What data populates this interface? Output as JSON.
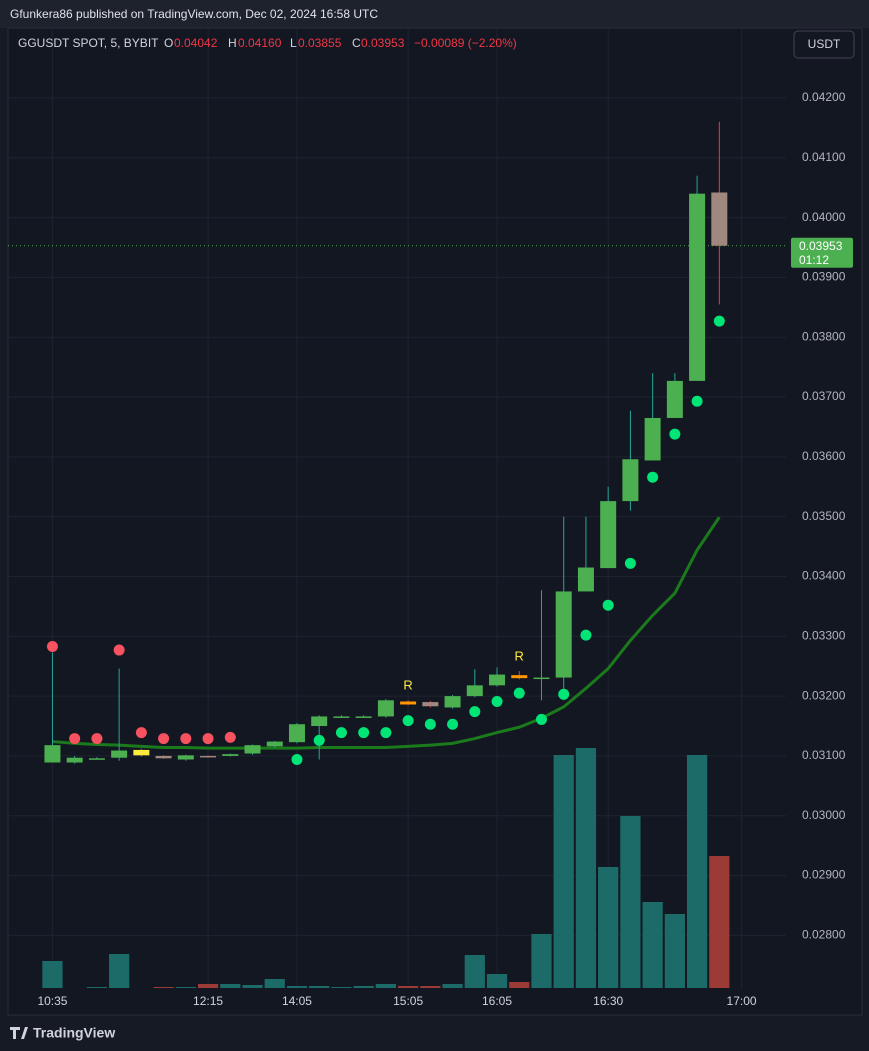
{
  "header": {
    "title": "Gfunkera86 published on TradingView.com, Dec 02, 2024 16:58 UTC",
    "footer": "TradingView",
    "currency_button": "USDT"
  },
  "legend": {
    "symbol": "GGUSDT SPOT, 5, BYBIT",
    "o_label": "O",
    "o_value": "0.04042",
    "h_label": "H",
    "h_value": "0.04160",
    "l_label": "L",
    "l_value": "0.03855",
    "c_label": "C",
    "c_value": "0.03953",
    "change": "−0.00089 (−2.20%)"
  },
  "chart_data": {
    "type": "candlestick",
    "open": [
      0.03089,
      0.03089,
      0.03096,
      0.03097,
      0.0311,
      0.031,
      0.03094,
      0.031,
      0.031,
      0.03104,
      0.03116,
      0.03123,
      0.0315,
      0.03166,
      0.03166,
      0.03166,
      0.03191,
      0.0319,
      0.03181,
      0.032,
      0.03218,
      0.03235,
      0.03231,
      0.03231,
      0.03375,
      0.03414,
      0.03526,
      0.03594,
      0.03665,
      0.03727,
      0.04042
    ],
    "high": [
      0.03273,
      0.031,
      0.03098,
      0.03246,
      0.03112,
      0.03101,
      0.03102,
      0.03101,
      0.03104,
      0.03119,
      0.03125,
      0.03155,
      0.03168,
      0.03168,
      0.03168,
      0.03195,
      0.03193,
      0.03192,
      0.03202,
      0.03245,
      0.03248,
      0.03242,
      0.03377,
      0.035,
      0.035,
      0.0355,
      0.03677,
      0.0374,
      0.0374,
      0.0407,
      0.0416
    ],
    "low": [
      0.03089,
      0.03087,
      0.03094,
      0.03092,
      0.03099,
      0.03095,
      0.03092,
      0.03097,
      0.03099,
      0.03102,
      0.03114,
      0.03121,
      0.03094,
      0.03164,
      0.03164,
      0.03164,
      0.03185,
      0.03181,
      0.03179,
      0.03198,
      0.03216,
      0.03228,
      0.03193,
      0.03193,
      0.03375,
      0.03414,
      0.0351,
      0.03594,
      0.03665,
      0.03727,
      0.03855
    ],
    "close": [
      0.03118,
      0.03097,
      0.03096,
      0.03109,
      0.03101,
      0.03096,
      0.03101,
      0.03098,
      0.03103,
      0.03118,
      0.03124,
      0.03153,
      0.03166,
      0.03166,
      0.03166,
      0.03193,
      0.03186,
      0.03183,
      0.032,
      0.03218,
      0.03236,
      0.0323,
      0.03231,
      0.03375,
      0.03415,
      0.03526,
      0.03596,
      0.03665,
      0.03727,
      0.0404,
      0.03953
    ],
    "volume": [
      27,
      0,
      1,
      34,
      0,
      1,
      1,
      4,
      4,
      3,
      9,
      2,
      2,
      1,
      2,
      4,
      2,
      2,
      4,
      33,
      14,
      6,
      54,
      233,
      240,
      121,
      172,
      86,
      74,
      233,
      132
    ],
    "sar": [
      0.03283,
      0.03129,
      0.03129,
      0.03277,
      0.03139,
      0.03129,
      0.03129,
      0.03129,
      0.03131,
      null,
      null,
      0.03094,
      0.03126,
      0.03139,
      0.03139,
      0.03139,
      0.03159,
      0.03153,
      0.03153,
      0.03174,
      0.03191,
      0.03205,
      0.03161,
      0.03203,
      0.03302,
      0.03352,
      0.03422,
      0.03566,
      0.03638,
      0.03693,
      0.03827
    ],
    "ma": [
      0.03124,
      0.03121,
      0.03119,
      0.03118,
      0.03116,
      0.03114,
      0.03114,
      0.03113,
      0.03113,
      0.03113,
      0.03113,
      0.03113,
      0.03114,
      0.03114,
      0.03114,
      0.03114,
      0.03116,
      0.03118,
      0.03121,
      0.03129,
      0.03139,
      0.03148,
      0.03163,
      0.03182,
      0.03213,
      0.03246,
      0.03293,
      0.03335,
      0.03372,
      0.03444,
      0.03499
    ],
    "signals": [
      null,
      null,
      null,
      null,
      null,
      null,
      null,
      null,
      null,
      null,
      null,
      null,
      null,
      null,
      null,
      null,
      "R",
      null,
      null,
      null,
      null,
      "R",
      null,
      null,
      null,
      null,
      null,
      null,
      null,
      null,
      null
    ],
    "highlight_colors": [
      null,
      null,
      null,
      null,
      "#ffeb3b",
      null,
      null,
      null,
      null,
      null,
      null,
      null,
      null,
      null,
      null,
      null,
      "#ff9800",
      null,
      null,
      null,
      null,
      "#ff9800",
      null,
      null,
      null,
      null,
      null,
      null,
      null,
      null,
      null
    ],
    "up_color": "#4caf50",
    "down_color": "#a1887f",
    "volume_up_color": "#1d6b68",
    "volume_down_color": "#9c3a36",
    "sar_above_color": "#f7525f",
    "sar_below_color": "#00e676",
    "ma_color": "#1b7a1b",
    "signal_color": "#ffeb3b",
    "xlim": [
      -2,
      33
    ],
    "xticks": [
      {
        "value": 0,
        "label": "10:35"
      },
      {
        "value": 7,
        "label": "12:15"
      },
      {
        "value": 11,
        "label": "14:05"
      },
      {
        "value": 16,
        "label": "15:05"
      },
      {
        "value": 20,
        "label": "16:05"
      },
      {
        "value": 25,
        "label": "16:30"
      },
      {
        "value": 31,
        "label": "17:00"
      }
    ],
    "ylim": [
      0.02717,
      0.04317
    ],
    "yticks": [
      {
        "value": 0.028,
        "label": "0.02800"
      },
      {
        "value": 0.029,
        "label": "0.02900"
      },
      {
        "value": 0.03,
        "label": "0.03000"
      },
      {
        "value": 0.031,
        "label": "0.03100"
      },
      {
        "value": 0.032,
        "label": "0.03200"
      },
      {
        "value": 0.033,
        "label": "0.03300"
      },
      {
        "value": 0.034,
        "label": "0.03400"
      },
      {
        "value": 0.035,
        "label": "0.03500"
      },
      {
        "value": 0.036,
        "label": "0.03600"
      },
      {
        "value": 0.037,
        "label": "0.03700"
      },
      {
        "value": 0.038,
        "label": "0.03800"
      },
      {
        "value": 0.039,
        "label": "0.03900"
      },
      {
        "value": 0.04,
        "label": "0.04000"
      },
      {
        "value": 0.041,
        "label": "0.04100"
      },
      {
        "value": 0.042,
        "label": "0.04200"
      }
    ],
    "grid": true,
    "last_price": {
      "value": 0.03953,
      "label": "0.03953"
    },
    "countdown": "01:12"
  }
}
